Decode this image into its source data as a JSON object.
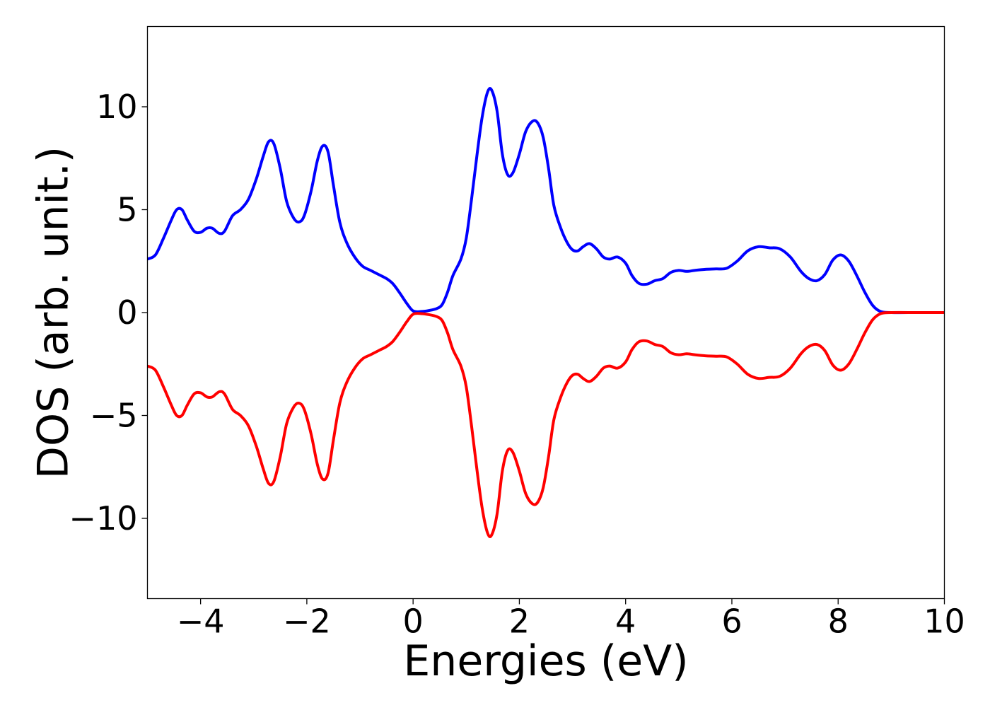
{
  "chart_data": {
    "type": "line",
    "title": "",
    "xlabel": "Energies (eV)",
    "ylabel": "DOS (arb. unit.)",
    "xlim": [
      -5,
      10
    ],
    "ylim": [
      -13.9,
      13.9
    ],
    "grid": false,
    "legend": "none",
    "x_ticks": [
      -4,
      -2,
      0,
      2,
      4,
      6,
      8,
      10
    ],
    "x_tick_labels": [
      "−4",
      "−2",
      "0",
      "2",
      "4",
      "6",
      "8",
      "10"
    ],
    "y_ticks": [
      10,
      5,
      0,
      -5,
      -10
    ],
    "y_tick_labels": [
      "10",
      "5",
      "0",
      "−5",
      "−10"
    ],
    "series": [
      {
        "color": "#0000ff",
        "points": [
          [
            -5.0,
            2.6
          ],
          [
            -4.85,
            2.8
          ],
          [
            -4.7,
            3.6
          ],
          [
            -4.55,
            4.5
          ],
          [
            -4.45,
            5.0
          ],
          [
            -4.35,
            5.0
          ],
          [
            -4.25,
            4.5
          ],
          [
            -4.12,
            3.95
          ],
          [
            -4.0,
            3.9
          ],
          [
            -3.88,
            4.1
          ],
          [
            -3.78,
            4.1
          ],
          [
            -3.65,
            3.85
          ],
          [
            -3.55,
            3.95
          ],
          [
            -3.4,
            4.7
          ],
          [
            -3.25,
            5.0
          ],
          [
            -3.1,
            5.5
          ],
          [
            -2.95,
            6.5
          ],
          [
            -2.82,
            7.6
          ],
          [
            -2.72,
            8.3
          ],
          [
            -2.62,
            8.2
          ],
          [
            -2.5,
            7.0
          ],
          [
            -2.38,
            5.4
          ],
          [
            -2.25,
            4.6
          ],
          [
            -2.15,
            4.4
          ],
          [
            -2.05,
            4.7
          ],
          [
            -1.92,
            5.9
          ],
          [
            -1.8,
            7.4
          ],
          [
            -1.7,
            8.1
          ],
          [
            -1.6,
            7.8
          ],
          [
            -1.5,
            6.2
          ],
          [
            -1.38,
            4.4
          ],
          [
            -1.25,
            3.4
          ],
          [
            -1.1,
            2.7
          ],
          [
            -0.95,
            2.25
          ],
          [
            -0.8,
            2.05
          ],
          [
            -0.65,
            1.85
          ],
          [
            -0.5,
            1.65
          ],
          [
            -0.38,
            1.4
          ],
          [
            -0.25,
            0.95
          ],
          [
            -0.12,
            0.45
          ],
          [
            0.0,
            0.08
          ],
          [
            0.15,
            0.05
          ],
          [
            0.3,
            0.1
          ],
          [
            0.45,
            0.2
          ],
          [
            0.55,
            0.4
          ],
          [
            0.65,
            1.0
          ],
          [
            0.75,
            1.8
          ],
          [
            0.9,
            2.6
          ],
          [
            1.0,
            3.6
          ],
          [
            1.1,
            5.5
          ],
          [
            1.2,
            7.6
          ],
          [
            1.3,
            9.5
          ],
          [
            1.4,
            10.7
          ],
          [
            1.48,
            10.8
          ],
          [
            1.58,
            9.8
          ],
          [
            1.68,
            7.7
          ],
          [
            1.78,
            6.7
          ],
          [
            1.88,
            6.8
          ],
          [
            2.0,
            7.7
          ],
          [
            2.12,
            8.8
          ],
          [
            2.25,
            9.3
          ],
          [
            2.35,
            9.2
          ],
          [
            2.45,
            8.5
          ],
          [
            2.55,
            7.0
          ],
          [
            2.65,
            5.2
          ],
          [
            2.78,
            4.1
          ],
          [
            2.9,
            3.4
          ],
          [
            3.0,
            3.05
          ],
          [
            3.1,
            3.0
          ],
          [
            3.2,
            3.2
          ],
          [
            3.32,
            3.35
          ],
          [
            3.45,
            3.1
          ],
          [
            3.58,
            2.7
          ],
          [
            3.7,
            2.6
          ],
          [
            3.85,
            2.7
          ],
          [
            4.0,
            2.4
          ],
          [
            4.12,
            1.8
          ],
          [
            4.25,
            1.42
          ],
          [
            4.4,
            1.38
          ],
          [
            4.55,
            1.55
          ],
          [
            4.7,
            1.65
          ],
          [
            4.85,
            1.95
          ],
          [
            5.0,
            2.05
          ],
          [
            5.15,
            2.0
          ],
          [
            5.3,
            2.05
          ],
          [
            5.5,
            2.1
          ],
          [
            5.7,
            2.12
          ],
          [
            5.9,
            2.15
          ],
          [
            6.1,
            2.5
          ],
          [
            6.3,
            3.0
          ],
          [
            6.5,
            3.2
          ],
          [
            6.7,
            3.15
          ],
          [
            6.9,
            3.1
          ],
          [
            7.1,
            2.7
          ],
          [
            7.3,
            2.0
          ],
          [
            7.45,
            1.65
          ],
          [
            7.6,
            1.55
          ],
          [
            7.75,
            1.85
          ],
          [
            7.9,
            2.55
          ],
          [
            8.05,
            2.8
          ],
          [
            8.2,
            2.5
          ],
          [
            8.35,
            1.8
          ],
          [
            8.5,
            1.0
          ],
          [
            8.65,
            0.35
          ],
          [
            8.8,
            0.05
          ],
          [
            9.0,
            0.0
          ],
          [
            9.5,
            0.0
          ],
          [
            10.0,
            0.0
          ]
        ]
      },
      {
        "color": "#ff0000",
        "points": [
          [
            -5.0,
            -2.6
          ],
          [
            -4.85,
            -2.8
          ],
          [
            -4.7,
            -3.6
          ],
          [
            -4.55,
            -4.5
          ],
          [
            -4.45,
            -5.0
          ],
          [
            -4.35,
            -5.0
          ],
          [
            -4.25,
            -4.5
          ],
          [
            -4.12,
            -3.95
          ],
          [
            -4.0,
            -3.9
          ],
          [
            -3.88,
            -4.1
          ],
          [
            -3.78,
            -4.1
          ],
          [
            -3.65,
            -3.85
          ],
          [
            -3.55,
            -3.95
          ],
          [
            -3.4,
            -4.7
          ],
          [
            -3.25,
            -5.0
          ],
          [
            -3.1,
            -5.5
          ],
          [
            -2.95,
            -6.5
          ],
          [
            -2.82,
            -7.6
          ],
          [
            -2.72,
            -8.3
          ],
          [
            -2.62,
            -8.2
          ],
          [
            -2.5,
            -7.0
          ],
          [
            -2.38,
            -5.4
          ],
          [
            -2.25,
            -4.6
          ],
          [
            -2.15,
            -4.4
          ],
          [
            -2.05,
            -4.7
          ],
          [
            -1.92,
            -5.9
          ],
          [
            -1.8,
            -7.4
          ],
          [
            -1.7,
            -8.1
          ],
          [
            -1.6,
            -7.8
          ],
          [
            -1.5,
            -6.2
          ],
          [
            -1.38,
            -4.4
          ],
          [
            -1.25,
            -3.4
          ],
          [
            -1.1,
            -2.7
          ],
          [
            -0.95,
            -2.25
          ],
          [
            -0.8,
            -2.05
          ],
          [
            -0.65,
            -1.85
          ],
          [
            -0.5,
            -1.65
          ],
          [
            -0.38,
            -1.4
          ],
          [
            -0.25,
            -0.95
          ],
          [
            -0.12,
            -0.45
          ],
          [
            0.0,
            -0.08
          ],
          [
            0.15,
            -0.05
          ],
          [
            0.3,
            -0.1
          ],
          [
            0.45,
            -0.2
          ],
          [
            0.55,
            -0.4
          ],
          [
            0.65,
            -1.0
          ],
          [
            0.75,
            -1.8
          ],
          [
            0.9,
            -2.6
          ],
          [
            1.0,
            -3.6
          ],
          [
            1.1,
            -5.5
          ],
          [
            1.2,
            -7.6
          ],
          [
            1.3,
            -9.5
          ],
          [
            1.4,
            -10.7
          ],
          [
            1.48,
            -10.8
          ],
          [
            1.58,
            -9.8
          ],
          [
            1.68,
            -7.7
          ],
          [
            1.78,
            -6.7
          ],
          [
            1.88,
            -6.8
          ],
          [
            2.0,
            -7.7
          ],
          [
            2.12,
            -8.8
          ],
          [
            2.25,
            -9.3
          ],
          [
            2.35,
            -9.2
          ],
          [
            2.45,
            -8.5
          ],
          [
            2.55,
            -7.0
          ],
          [
            2.65,
            -5.2
          ],
          [
            2.78,
            -4.1
          ],
          [
            2.9,
            -3.4
          ],
          [
            3.0,
            -3.05
          ],
          [
            3.1,
            -3.0
          ],
          [
            3.2,
            -3.2
          ],
          [
            3.32,
            -3.35
          ],
          [
            3.45,
            -3.1
          ],
          [
            3.58,
            -2.7
          ],
          [
            3.7,
            -2.6
          ],
          [
            3.85,
            -2.7
          ],
          [
            4.0,
            -2.4
          ],
          [
            4.12,
            -1.8
          ],
          [
            4.25,
            -1.42
          ],
          [
            4.4,
            -1.38
          ],
          [
            4.55,
            -1.55
          ],
          [
            4.7,
            -1.65
          ],
          [
            4.85,
            -1.95
          ],
          [
            5.0,
            -2.05
          ],
          [
            5.15,
            -2.0
          ],
          [
            5.3,
            -2.05
          ],
          [
            5.5,
            -2.1
          ],
          [
            5.7,
            -2.12
          ],
          [
            5.9,
            -2.15
          ],
          [
            6.1,
            -2.5
          ],
          [
            6.3,
            -3.0
          ],
          [
            6.5,
            -3.2
          ],
          [
            6.7,
            -3.15
          ],
          [
            6.9,
            -3.1
          ],
          [
            7.1,
            -2.7
          ],
          [
            7.3,
            -2.0
          ],
          [
            7.45,
            -1.65
          ],
          [
            7.6,
            -1.55
          ],
          [
            7.75,
            -1.85
          ],
          [
            7.9,
            -2.55
          ],
          [
            8.05,
            -2.8
          ],
          [
            8.2,
            -2.5
          ],
          [
            8.35,
            -1.8
          ],
          [
            8.5,
            -1.0
          ],
          [
            8.65,
            -0.35
          ],
          [
            8.8,
            -0.05
          ],
          [
            9.0,
            0.0
          ],
          [
            9.5,
            0.0
          ],
          [
            10.0,
            0.0
          ]
        ]
      }
    ]
  }
}
